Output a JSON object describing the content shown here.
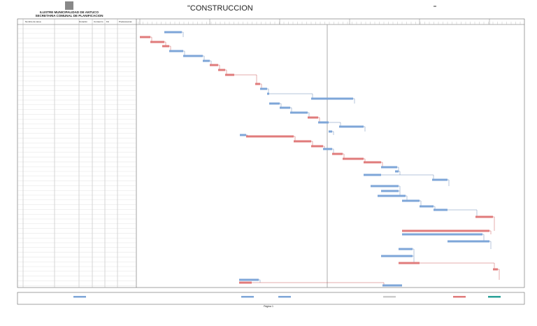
{
  "header": {
    "org": "ILUSTRE MUNICIPALIDAD DE ANTUCO",
    "department": "SECRETARIA COMUNAL DE PLANIFICACION",
    "title": "\"CONSTRUCCION"
  },
  "table": {
    "columns": [
      "Nombre de tarea",
      "Duración",
      "Comienzo",
      "Fin",
      "Predecesoras"
    ]
  },
  "footer": {
    "page": "Página 1"
  }
}
